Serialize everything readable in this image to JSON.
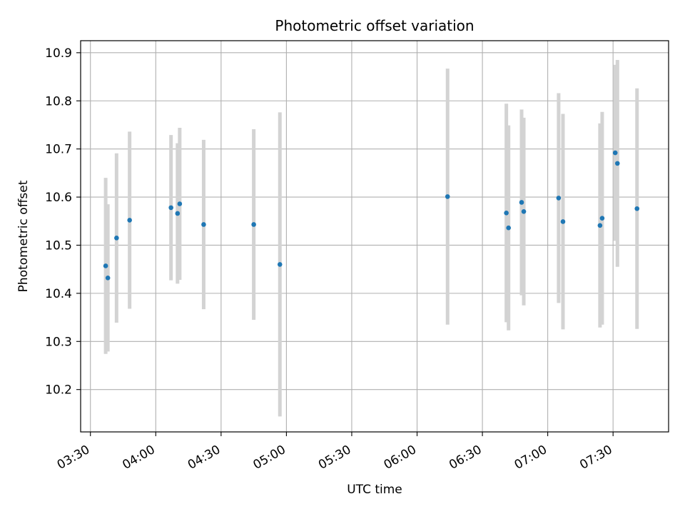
{
  "chart_data": {
    "type": "scatter",
    "title": "Photometric offset variation",
    "xlabel": "UTC time",
    "ylabel": "Photometric offset",
    "x_tick_labels": [
      "03:30",
      "04:00",
      "04:30",
      "05:00",
      "05:30",
      "06:00",
      "06:30",
      "07:00",
      "07:30"
    ],
    "y_tick_labels": [
      "10.2",
      "10.3",
      "10.4",
      "10.5",
      "10.6",
      "10.7",
      "10.8",
      "10.9"
    ],
    "x_ticks_minutes": [
      210,
      240,
      270,
      300,
      330,
      360,
      390,
      420,
      450
    ],
    "y_ticks": [
      10.2,
      10.3,
      10.4,
      10.5,
      10.6,
      10.7,
      10.8,
      10.9
    ],
    "xlim_minutes": [
      205.5,
      475.5
    ],
    "ylim": [
      10.112,
      10.925
    ],
    "grid": true,
    "point_color": "#1f77b4",
    "errorbar_color": "#d3d3d3",
    "series": [
      {
        "points": [
          {
            "time": "03:37",
            "y": 10.457,
            "err": 0.183
          },
          {
            "time": "03:38",
            "y": 10.432,
            "err": 0.153
          },
          {
            "time": "03:42",
            "y": 10.515,
            "err": 0.176
          },
          {
            "time": "03:48",
            "y": 10.552,
            "err": 0.184
          },
          {
            "time": "04:07",
            "y": 10.578,
            "err": 0.151
          },
          {
            "time": "04:10",
            "y": 10.566,
            "err": 0.146
          },
          {
            "time": "04:11",
            "y": 10.586,
            "err": 0.158
          },
          {
            "time": "04:22",
            "y": 10.543,
            "err": 0.176
          },
          {
            "time": "04:45",
            "y": 10.543,
            "err": 0.198
          },
          {
            "time": "04:57",
            "y": 10.46,
            "err": 0.316
          },
          {
            "time": "06:14",
            "y": 10.601,
            "err": 0.266
          },
          {
            "time": "06:41",
            "y": 10.567,
            "err": 0.227
          },
          {
            "time": "06:42",
            "y": 10.536,
            "err": 0.213
          },
          {
            "time": "06:48",
            "y": 10.589,
            "err": 0.193
          },
          {
            "time": "06:49",
            "y": 10.57,
            "err": 0.195
          },
          {
            "time": "07:05",
            "y": 10.598,
            "err": 0.218
          },
          {
            "time": "07:07",
            "y": 10.549,
            "err": 0.224
          },
          {
            "time": "07:24",
            "y": 10.541,
            "err": 0.212
          },
          {
            "time": "07:25",
            "y": 10.556,
            "err": 0.221
          },
          {
            "time": "07:31",
            "y": 10.692,
            "err": 0.183
          },
          {
            "time": "07:32",
            "y": 10.67,
            "err": 0.215
          },
          {
            "time": "07:41",
            "y": 10.576,
            "err": 0.25
          }
        ]
      }
    ]
  }
}
